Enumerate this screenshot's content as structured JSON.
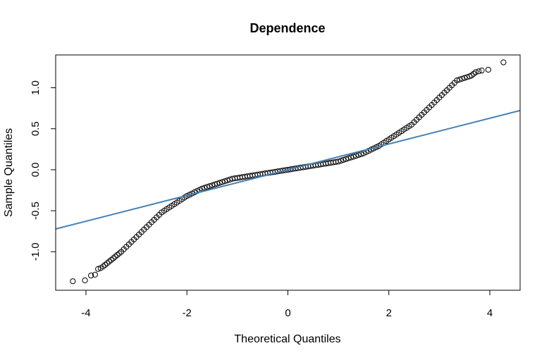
{
  "chart_data": {
    "type": "scatter",
    "title": "Dependence",
    "xlabel": "Theoretical Quantiles",
    "ylabel": "Sample Quantiles",
    "xlim": [
      -4.6,
      4.6
    ],
    "ylim": [
      -1.47,
      1.4
    ],
    "x_ticks": [
      -4,
      -2,
      0,
      2,
      4
    ],
    "x_tick_labels": [
      "-4",
      "-2",
      "0",
      "2",
      "4"
    ],
    "y_ticks": [
      -1.0,
      -0.5,
      0.0,
      0.5,
      1.0
    ],
    "y_tick_labels": [
      "-1.0",
      "-0.5",
      "0.0",
      "0.5",
      "1.0"
    ],
    "grid": false,
    "marker": "open-circle",
    "point_color": "#000000",
    "reference_line": {
      "slope": 0.157,
      "intercept": 0.0,
      "color": "#4682B4"
    },
    "points_x": [
      -4.26,
      -4.02,
      -3.9,
      -3.82,
      -3.76,
      -3.71,
      -3.66,
      -3.62,
      -3.58,
      -3.54,
      -3.5,
      -3.46,
      -3.42,
      -3.38,
      -3.34,
      -3.3,
      -3.25,
      -3.2,
      -3.15,
      -3.1,
      -3.05,
      -3.0,
      -2.95,
      -2.9,
      -2.85,
      -2.8,
      -2.75,
      -2.7,
      -2.65,
      -2.6,
      -2.55,
      -2.5,
      -2.45,
      -2.4,
      -2.35,
      -2.3,
      -2.25,
      -2.2,
      -2.15,
      -2.1,
      -2.05,
      -2.0,
      -1.95,
      -1.9,
      -1.85,
      -1.8,
      -1.75,
      -1.7,
      -1.65,
      -1.6,
      -1.55,
      -1.5,
      -1.45,
      -1.4,
      -1.35,
      -1.3,
      -1.25,
      -1.2,
      -1.15,
      -1.1,
      -1.05,
      -1.0,
      -0.95,
      -0.9,
      -0.85,
      -0.8,
      -0.75,
      -0.7,
      -0.65,
      -0.6,
      -0.55,
      -0.5,
      -0.45,
      -0.4,
      -0.35,
      -0.3,
      -0.25,
      -0.2,
      -0.15,
      -0.1,
      -0.05,
      0.0,
      0.05,
      0.1,
      0.15,
      0.2,
      0.25,
      0.3,
      0.35,
      0.4,
      0.45,
      0.5,
      0.55,
      0.6,
      0.65,
      0.7,
      0.75,
      0.8,
      0.85,
      0.9,
      0.95,
      1.0,
      1.05,
      1.1,
      1.15,
      1.2,
      1.25,
      1.3,
      1.35,
      1.4,
      1.45,
      1.5,
      1.55,
      1.6,
      1.65,
      1.7,
      1.75,
      1.8,
      1.85,
      1.9,
      1.95,
      2.0,
      2.05,
      2.1,
      2.15,
      2.2,
      2.25,
      2.3,
      2.35,
      2.4,
      2.45,
      2.5,
      2.55,
      2.6,
      2.65,
      2.7,
      2.75,
      2.8,
      2.85,
      2.9,
      2.95,
      3.0,
      3.05,
      3.1,
      3.15,
      3.2,
      3.25,
      3.3,
      3.35,
      3.4,
      3.45,
      3.5,
      3.55,
      3.6,
      3.64,
      3.68,
      3.72,
      3.78,
      3.84,
      3.97,
      4.27
    ],
    "points_y": [
      -1.36,
      -1.35,
      -1.29,
      -1.28,
      -1.21,
      -1.2,
      -1.18,
      -1.16,
      -1.14,
      -1.12,
      -1.1,
      -1.08,
      -1.06,
      -1.04,
      -1.02,
      -1.0,
      -0.97,
      -0.94,
      -0.91,
      -0.88,
      -0.85,
      -0.82,
      -0.79,
      -0.76,
      -0.73,
      -0.7,
      -0.67,
      -0.64,
      -0.61,
      -0.58,
      -0.55,
      -0.52,
      -0.5,
      -0.48,
      -0.46,
      -0.44,
      -0.42,
      -0.4,
      -0.38,
      -0.36,
      -0.34,
      -0.32,
      -0.305,
      -0.29,
      -0.275,
      -0.26,
      -0.245,
      -0.23,
      -0.22,
      -0.21,
      -0.2,
      -0.19,
      -0.18,
      -0.17,
      -0.16,
      -0.15,
      -0.14,
      -0.13,
      -0.12,
      -0.11,
      -0.105,
      -0.1,
      -0.095,
      -0.09,
      -0.085,
      -0.08,
      -0.075,
      -0.07,
      -0.065,
      -0.06,
      -0.055,
      -0.05,
      -0.045,
      -0.04,
      -0.035,
      -0.03,
      -0.025,
      -0.02,
      -0.015,
      -0.01,
      -0.005,
      0.0,
      0.005,
      0.01,
      0.015,
      0.02,
      0.025,
      0.03,
      0.035,
      0.04,
      0.045,
      0.05,
      0.055,
      0.06,
      0.065,
      0.07,
      0.075,
      0.08,
      0.085,
      0.09,
      0.095,
      0.1,
      0.11,
      0.12,
      0.13,
      0.14,
      0.15,
      0.16,
      0.17,
      0.18,
      0.19,
      0.2,
      0.215,
      0.23,
      0.245,
      0.26,
      0.275,
      0.29,
      0.31,
      0.33,
      0.35,
      0.37,
      0.39,
      0.41,
      0.43,
      0.45,
      0.47,
      0.49,
      0.51,
      0.53,
      0.55,
      0.58,
      0.61,
      0.64,
      0.67,
      0.7,
      0.73,
      0.76,
      0.79,
      0.82,
      0.85,
      0.88,
      0.91,
      0.94,
      0.97,
      1.0,
      1.03,
      1.06,
      1.09,
      1.1,
      1.11,
      1.12,
      1.13,
      1.14,
      1.15,
      1.17,
      1.19,
      1.2,
      1.21,
      1.22,
      1.31
    ]
  }
}
